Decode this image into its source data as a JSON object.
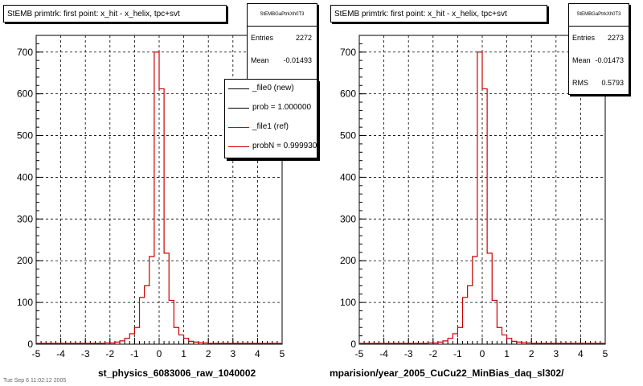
{
  "chart_data": [
    {
      "type": "histogram",
      "title": "StEMB primtrk: first point: x_hit - x_helix, tpc+svt",
      "stats": {
        "name": "StEMBGaPtrkXh0T3",
        "entries_label": "Entries",
        "entries": "2272",
        "mean_label": "Mean",
        "mean": "-0.01493"
      },
      "legend": [
        {
          "label": "_file0 (new)",
          "color": "#000000"
        },
        {
          "label": "prob = 1.000000",
          "color": "#000000"
        },
        {
          "label": "_file1 (ref)",
          "color": "#cc0000"
        },
        {
          "label": "probN = 0.999930",
          "color": "#cc0000"
        }
      ],
      "xlabel": "st_physics_6083006_raw_1040002",
      "ylabel": "",
      "xlim": [
        -5,
        5
      ],
      "ylim": [
        0,
        740
      ],
      "xticks": [
        "-5",
        "-4",
        "-3",
        "-2",
        "-1",
        "0",
        "1",
        "2",
        "3",
        "4",
        "5"
      ],
      "yticks": [
        "0",
        "100",
        "200",
        "300",
        "400",
        "500",
        "600",
        "700"
      ],
      "grid": true,
      "bin_width": 0.2,
      "series": [
        {
          "color": "#cc0000",
          "bins": [
            [
              -5.0,
              2
            ],
            [
              -4.8,
              2
            ],
            [
              -4.6,
              2
            ],
            [
              -4.4,
              2
            ],
            [
              -4.2,
              2
            ],
            [
              -4.0,
              2
            ],
            [
              -3.8,
              2
            ],
            [
              -3.6,
              2
            ],
            [
              -3.4,
              2
            ],
            [
              -3.2,
              2
            ],
            [
              -3.0,
              2
            ],
            [
              -2.8,
              2
            ],
            [
              -2.6,
              2
            ],
            [
              -2.4,
              2
            ],
            [
              -2.2,
              3
            ],
            [
              -2.0,
              3
            ],
            [
              -1.8,
              5
            ],
            [
              -1.6,
              8
            ],
            [
              -1.4,
              14
            ],
            [
              -1.2,
              25
            ],
            [
              -1.0,
              40
            ],
            [
              -0.8,
              112
            ],
            [
              -0.6,
              140
            ],
            [
              -0.4,
              210
            ],
            [
              -0.2,
              700
            ],
            [
              0.0,
              612
            ],
            [
              0.2,
              218
            ],
            [
              0.4,
              105
            ],
            [
              0.6,
              40
            ],
            [
              0.8,
              22
            ],
            [
              1.0,
              14
            ],
            [
              1.2,
              7
            ],
            [
              1.4,
              5
            ],
            [
              1.6,
              4
            ],
            [
              1.8,
              3
            ],
            [
              2.0,
              2
            ],
            [
              2.2,
              2
            ],
            [
              2.4,
              2
            ],
            [
              2.6,
              2
            ],
            [
              2.8,
              2
            ],
            [
              3.0,
              2
            ],
            [
              3.2,
              2
            ],
            [
              3.4,
              2
            ],
            [
              3.6,
              2
            ],
            [
              3.8,
              2
            ],
            [
              4.0,
              2
            ],
            [
              4.2,
              2
            ],
            [
              4.4,
              2
            ],
            [
              4.6,
              2
            ],
            [
              4.8,
              2
            ]
          ]
        }
      ]
    },
    {
      "type": "histogram",
      "title": "StEMB primtrk: first point: x_hit - x_helix, tpc+svt",
      "stats": {
        "name": "StEMBGaPtrkXh0T3",
        "entries_label": "Entries",
        "entries": "2273",
        "mean_label": "Mean",
        "mean": "-0.01473",
        "rms_label": "RMS",
        "rms": "0.5793"
      },
      "xlabel": "mparision/year_2005_CuCu22_MinBias_daq_sl302/",
      "ylabel": "",
      "xlim": [
        -5,
        5
      ],
      "ylim": [
        0,
        740
      ],
      "xticks": [
        "-5",
        "-4",
        "-3",
        "-2",
        "-1",
        "0",
        "1",
        "2",
        "3",
        "4",
        "5"
      ],
      "yticks": [
        "0",
        "100",
        "200",
        "300",
        "400",
        "500",
        "600",
        "700"
      ],
      "grid": true,
      "bin_width": 0.2,
      "series": [
        {
          "color": "#cc0000",
          "bins": [
            [
              -5.0,
              2
            ],
            [
              -4.8,
              2
            ],
            [
              -4.6,
              2
            ],
            [
              -4.4,
              2
            ],
            [
              -4.2,
              2
            ],
            [
              -4.0,
              2
            ],
            [
              -3.8,
              2
            ],
            [
              -3.6,
              2
            ],
            [
              -3.4,
              2
            ],
            [
              -3.2,
              2
            ],
            [
              -3.0,
              2
            ],
            [
              -2.8,
              2
            ],
            [
              -2.6,
              2
            ],
            [
              -2.4,
              2
            ],
            [
              -2.2,
              3
            ],
            [
              -2.0,
              3
            ],
            [
              -1.8,
              5
            ],
            [
              -1.6,
              8
            ],
            [
              -1.4,
              14
            ],
            [
              -1.2,
              25
            ],
            [
              -1.0,
              40
            ],
            [
              -0.8,
              112
            ],
            [
              -0.6,
              140
            ],
            [
              -0.4,
              210
            ],
            [
              -0.2,
              700
            ],
            [
              0.0,
              612
            ],
            [
              0.2,
              218
            ],
            [
              0.4,
              105
            ],
            [
              0.6,
              40
            ],
            [
              0.8,
              22
            ],
            [
              1.0,
              14
            ],
            [
              1.2,
              7
            ],
            [
              1.4,
              5
            ],
            [
              1.6,
              4
            ],
            [
              1.8,
              3
            ],
            [
              2.0,
              2
            ],
            [
              2.2,
              2
            ],
            [
              2.4,
              2
            ],
            [
              2.6,
              2
            ],
            [
              2.8,
              2
            ],
            [
              3.0,
              2
            ],
            [
              3.2,
              2
            ],
            [
              3.4,
              2
            ],
            [
              3.6,
              2
            ],
            [
              3.8,
              2
            ],
            [
              4.0,
              2
            ],
            [
              4.2,
              2
            ],
            [
              4.4,
              2
            ],
            [
              4.6,
              2
            ],
            [
              4.8,
              2
            ]
          ]
        }
      ]
    }
  ],
  "footer": {
    "corner_text": "Tue Sep  6 11:02:12 2005"
  }
}
